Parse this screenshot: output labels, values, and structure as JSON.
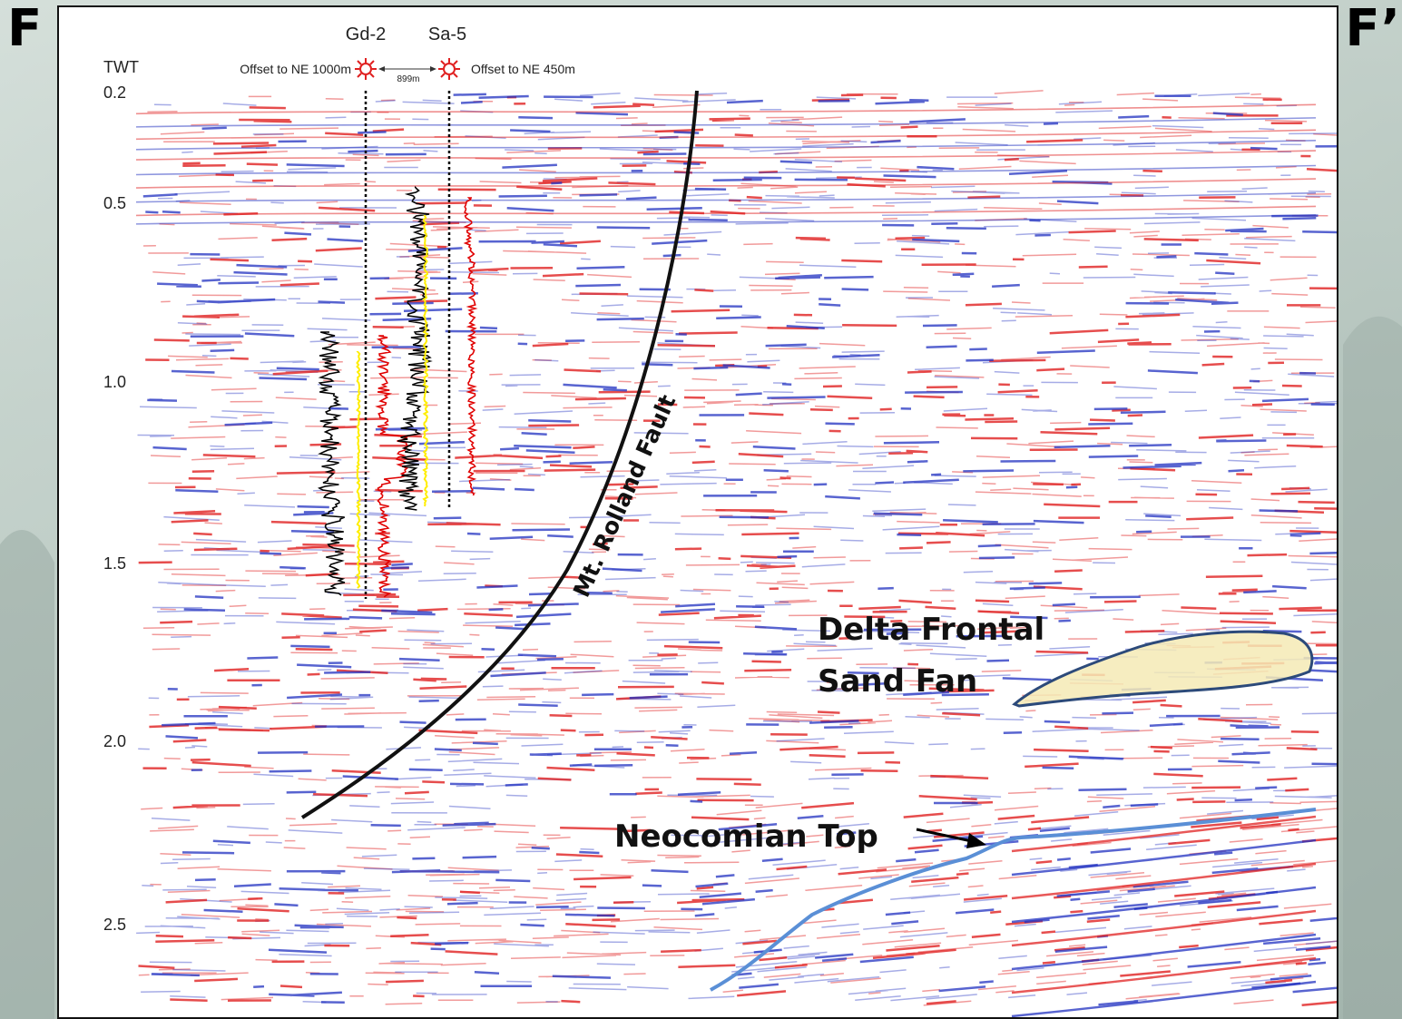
{
  "corner_labels": {
    "left": "F",
    "right": "F’"
  },
  "axis": {
    "label": "TWT",
    "ticks": [
      "0.2",
      "0.5",
      "1.0",
      "1.5",
      "2.0",
      "2.5"
    ]
  },
  "wells": [
    {
      "name": "Gd-2",
      "offset": "Offset to NE 1000m"
    },
    {
      "name": "Sa-5",
      "offset": "Offset to NE 450m"
    }
  ],
  "well_spacing": "899m",
  "annotations": {
    "fault": "Mt. Rolland Fault",
    "fan_line1": "Delta Frontal",
    "fan_line2": "Sand Fan",
    "horizon": "Neocomian Top"
  },
  "colors": {
    "positive_reflector": "#e02020",
    "negative_reflector": "#2030c0",
    "fault_line": "#111111",
    "horizon_line": "#5a8fd6",
    "fan_fill": "#f5eab5",
    "fan_outline": "#2c4a7a",
    "log_black": "#000000",
    "log_red": "#e00000",
    "log_yellow": "#ffee00",
    "well_symbol": "#e02020"
  }
}
